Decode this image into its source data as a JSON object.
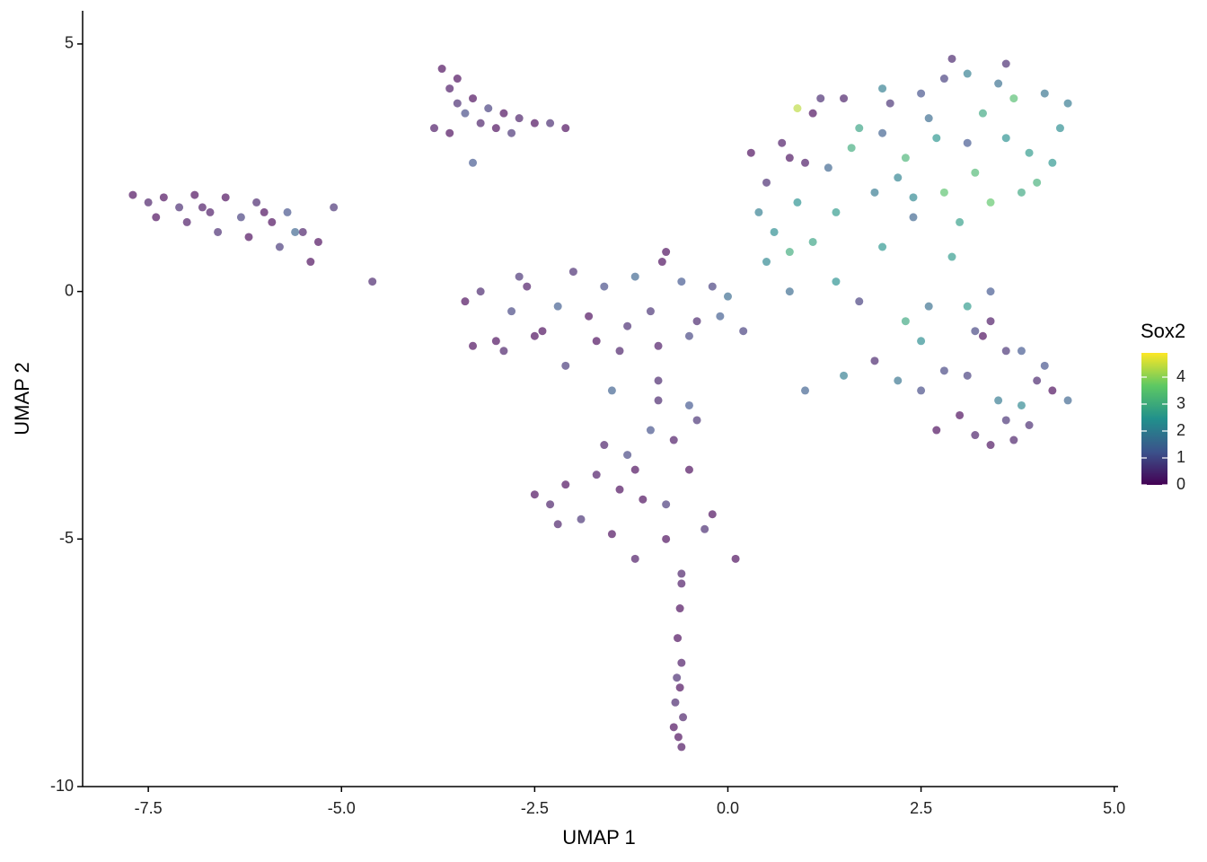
{
  "chart_data": {
    "type": "scatter",
    "xlabel": "UMAP 1",
    "ylabel": "UMAP 2",
    "xlim": [
      -8.35,
      5.05
    ],
    "ylim": [
      -10,
      5.67
    ],
    "xticks": [
      -7.5,
      {
        "value": -5,
        "label": "-5.0"
      },
      -2.5,
      {
        "value": 0,
        "label": "0.0"
      },
      2.5,
      {
        "value": 5,
        "label": "5.0"
      }
    ],
    "yticks": [
      -10,
      -5,
      0,
      5
    ],
    "legend": {
      "title": "Sox2",
      "position": "right",
      "clim": [
        0,
        4.9
      ],
      "ticks": [
        0,
        1,
        2,
        3,
        4
      ],
      "colormap": [
        "#440154",
        "#3b528b",
        "#21908c",
        "#5dc863",
        "#fde725"
      ]
    },
    "series": [
      {
        "name": "Sox2",
        "x": [
          -7.7,
          -7.5,
          -7.3,
          -7.1,
          -6.9,
          -6.7,
          -6.5,
          -6.3,
          -6.1,
          -5.9,
          -5.7,
          -5.5,
          -5.3,
          -5.1,
          -7.4,
          -7.0,
          -6.6,
          -6.2,
          -5.8,
          -5.4,
          -6.8,
          -6.0,
          -5.6,
          -4.6,
          -3.7,
          -3.6,
          -3.5,
          -3.3,
          -3.1,
          -2.9,
          -2.7,
          -2.5,
          -2.3,
          -2.1,
          -3.8,
          -3.6,
          -3.4,
          -3.2,
          -3.0,
          -2.8,
          -3.3,
          -3.5,
          -3.4,
          -3.2,
          -3.0,
          -2.8,
          -2.6,
          -2.4,
          -2.2,
          -2.0,
          -1.8,
          -1.6,
          -1.4,
          -1.2,
          -1.0,
          -0.8,
          -0.6,
          -0.4,
          -0.2,
          0.0,
          -3.3,
          -2.9,
          -2.5,
          -2.1,
          -1.7,
          -1.3,
          -0.9,
          -0.5,
          -0.1,
          -0.85,
          -2.7,
          -1.5,
          -2.5,
          -2.3,
          -2.1,
          -1.9,
          -1.7,
          -1.5,
          -1.3,
          -1.1,
          -0.9,
          -0.7,
          -0.5,
          -0.3,
          -1.6,
          -1.4,
          -1.2,
          -1.0,
          -0.8,
          -0.6,
          -0.4,
          -0.2,
          -0.9,
          -1.2,
          -0.6,
          -0.8,
          0.1,
          -2.2,
          -0.5,
          -0.65,
          -0.6,
          -0.62,
          -0.68,
          -0.7,
          -0.58,
          -0.64,
          -0.6,
          -0.66,
          -0.62,
          0.3,
          0.5,
          0.7,
          0.9,
          1.1,
          1.3,
          1.5,
          1.7,
          1.9,
          2.1,
          2.3,
          2.5,
          2.7,
          2.9,
          3.1,
          3.3,
          3.5,
          3.7,
          3.9,
          4.1,
          4.3,
          0.4,
          0.8,
          1.2,
          1.6,
          2.0,
          2.4,
          2.8,
          3.2,
          3.6,
          4.0,
          4.4,
          3.0,
          3.4,
          3.8,
          4.2,
          2.6,
          2.2,
          1.4,
          1.0,
          0.6,
          0.9,
          3.1,
          2.0,
          2.8,
          3.6,
          3.0,
          3.2,
          3.4,
          3.6,
          3.8,
          4.0,
          4.2,
          4.4,
          3.1,
          3.3,
          3.5,
          3.7,
          3.9,
          4.1,
          3.4,
          3.8,
          2.7,
          2.5,
          0.5,
          0.8,
          1.1,
          1.4,
          1.7,
          2.0,
          2.3,
          2.6,
          2.9,
          3.2,
          3.4,
          3.6,
          1.9,
          2.2,
          2.5,
          2.8,
          1.0,
          1.5,
          3.1,
          0.2,
          0.8,
          2.4
        ],
        "y": [
          1.95,
          1.8,
          1.9,
          1.7,
          1.95,
          1.6,
          1.9,
          1.5,
          1.8,
          1.4,
          1.6,
          1.2,
          1.0,
          1.7,
          1.5,
          1.4,
          1.2,
          1.1,
          0.9,
          0.6,
          1.7,
          1.6,
          1.2,
          0.2,
          4.5,
          4.1,
          3.8,
          3.9,
          3.7,
          3.6,
          3.5,
          3.4,
          3.4,
          3.3,
          3.3,
          3.2,
          3.6,
          3.4,
          3.3,
          3.2,
          2.6,
          4.3,
          -0.2,
          0.0,
          -1.0,
          -0.4,
          0.1,
          -0.8,
          -0.3,
          0.4,
          -0.5,
          0.1,
          -1.2,
          0.3,
          -0.4,
          0.8,
          0.2,
          -0.6,
          0.1,
          -0.1,
          -1.1,
          -1.2,
          -0.9,
          -1.5,
          -1.0,
          -0.7,
          -1.1,
          -0.9,
          -0.5,
          0.6,
          0.3,
          -2.0,
          -4.1,
          -4.3,
          -3.9,
          -4.6,
          -3.7,
          -4.9,
          -3.3,
          -4.2,
          -2.2,
          -3.0,
          -3.6,
          -4.8,
          -3.1,
          -4.0,
          -5.4,
          -2.8,
          -5.0,
          -5.7,
          -2.6,
          -4.5,
          -1.8,
          -3.6,
          -5.9,
          -4.3,
          -5.4,
          -4.7,
          -2.3,
          -7.0,
          -7.5,
          -8.0,
          -8.3,
          -8.8,
          -8.6,
          -9.0,
          -9.2,
          -7.8,
          -6.4,
          2.8,
          2.2,
          3.0,
          1.8,
          3.6,
          2.5,
          3.9,
          3.3,
          2.0,
          3.8,
          2.7,
          4.0,
          3.1,
          4.7,
          4.4,
          3.6,
          4.2,
          3.9,
          2.8,
          4.0,
          3.3,
          1.6,
          2.7,
          3.9,
          2.9,
          3.2,
          1.9,
          4.3,
          2.4,
          3.1,
          2.2,
          3.8,
          1.4,
          1.8,
          2.0,
          2.6,
          3.5,
          2.3,
          1.6,
          2.6,
          1.2,
          3.7,
          3.0,
          4.1,
          2.0,
          4.6,
          -2.5,
          -2.9,
          -3.1,
          -2.6,
          -1.2,
          -1.8,
          -2.0,
          -2.2,
          -1.7,
          -0.9,
          -2.2,
          -3.0,
          -2.7,
          -1.5,
          -0.6,
          -2.3,
          -2.8,
          -2.0,
          0.6,
          0.0,
          1.0,
          0.2,
          -0.2,
          0.9,
          -0.6,
          -0.3,
          0.7,
          -0.8,
          0.0,
          -1.2,
          -1.4,
          -1.8,
          -1.0,
          -1.6,
          -2.0,
          -1.7,
          -0.3,
          -0.8,
          0.8,
          1.5
        ],
        "values": [
          0,
          0.3,
          0,
          0.5,
          0,
          0.2,
          0,
          0.8,
          0.4,
          0,
          1.1,
          0.3,
          0,
          0.6,
          0,
          0.2,
          0.5,
          0,
          0.7,
          0,
          0.2,
          0,
          1.5,
          0.4,
          0,
          0.2,
          0.5,
          0,
          0.8,
          0,
          0.3,
          0,
          0.5,
          0,
          0.2,
          0,
          1.0,
          0.3,
          0,
          0.6,
          1.2,
          0,
          0,
          0.4,
          0,
          0.9,
          0.2,
          0,
          1.3,
          0.5,
          0,
          1.0,
          0.3,
          1.5,
          0.6,
          0,
          1.2,
          0.4,
          0.8,
          1.6,
          0,
          0.3,
          0,
          0.7,
          0,
          0.5,
          0.2,
          0.9,
          1.3,
          0,
          0.6,
          1.4,
          0,
          0.3,
          0,
          0.6,
          0.2,
          0,
          0.9,
          0,
          0.4,
          0.2,
          0,
          0.5,
          0.3,
          0,
          0.2,
          1.1,
          0,
          0.3,
          0.6,
          0,
          0.4,
          0,
          0.2,
          0.7,
          0,
          0.3,
          1.2,
          0,
          0.2,
          0,
          0.4,
          0,
          0.3,
          0,
          0.1,
          0.5,
          0,
          0,
          0.5,
          0.2,
          2.4,
          0,
          1.5,
          0.3,
          2.8,
          1.9,
          0.6,
          3.2,
          1.1,
          2.5,
          0.4,
          2.0,
          2.9,
          1.7,
          3.4,
          2.6,
          1.8,
          2.3,
          2.0,
          0.1,
          0.5,
          3.0,
          1.4,
          2.2,
          0.8,
          3.3,
          2.4,
          3.1,
          1.9,
          2.7,
          3.6,
          2.9,
          2.5,
          1.6,
          2.1,
          2.6,
          0.2,
          2.3,
          4.4,
          1.2,
          2.0,
          3.5,
          0.5,
          0,
          0.3,
          0.1,
          0.6,
          1.2,
          0.4,
          0,
          1.5,
          0.8,
          0,
          1.9,
          0.3,
          0.5,
          1.1,
          0.2,
          2.2,
          0,
          1.0,
          2.2,
          1.6,
          2.8,
          2.4,
          0.8,
          2.5,
          2.9,
          1.7,
          2.6,
          0.9,
          1.2,
          0.6,
          0.4,
          1.8,
          2.3,
          0.9,
          1.4,
          2.0,
          2.6,
          0.8,
          3.0,
          1.5
        ]
      }
    ]
  }
}
